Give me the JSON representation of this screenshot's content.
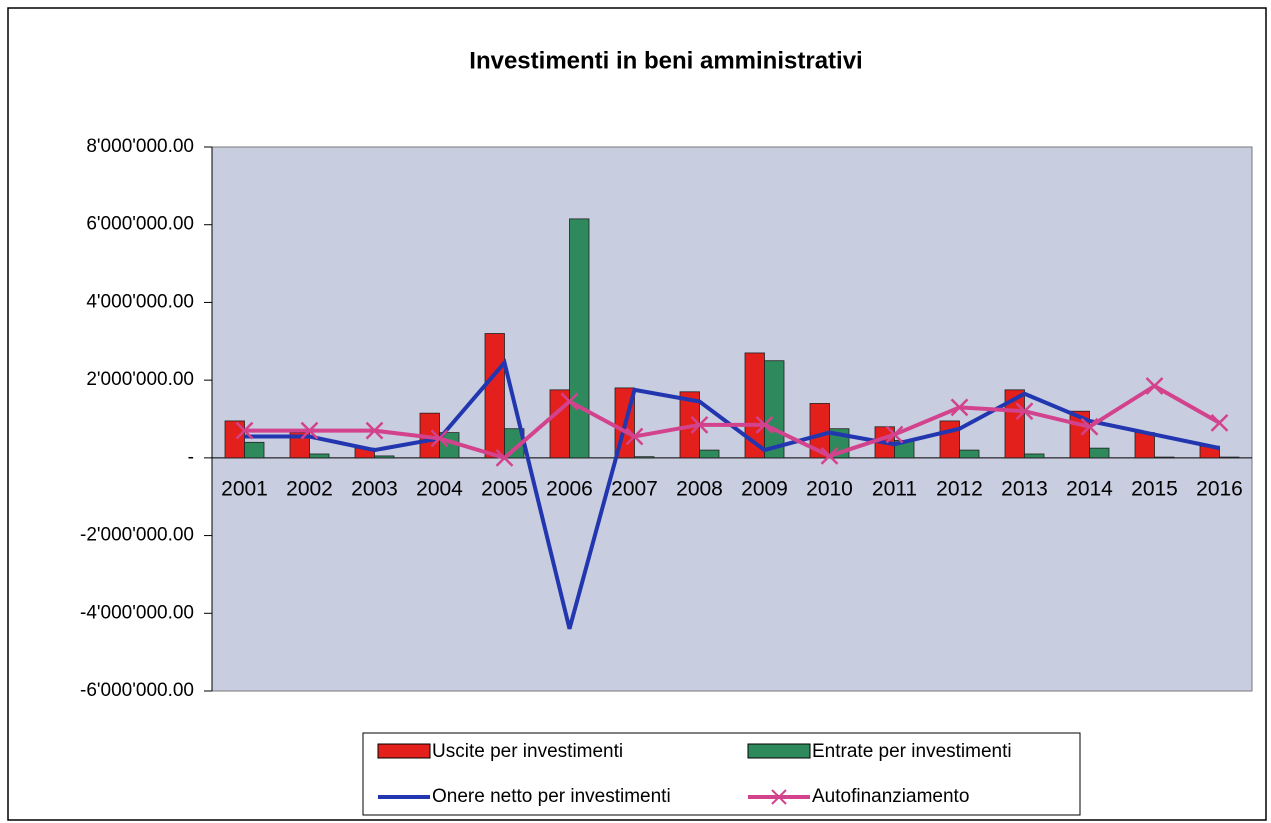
{
  "chart_data": {
    "type": "bar_line",
    "title": "Investimenti in beni amministrativi",
    "categories": [
      "2001",
      "2002",
      "2003",
      "2004",
      "2005",
      "2006",
      "2007",
      "2008",
      "2009",
      "2010",
      "2011",
      "2012",
      "2013",
      "2014",
      "2015",
      "2016"
    ],
    "series": [
      {
        "name": "Uscite per investimenti",
        "type": "bar",
        "color": "#e3201c",
        "values": [
          950000,
          650000,
          250000,
          1150000,
          3200000,
          1750000,
          1800000,
          1700000,
          2700000,
          1400000,
          800000,
          950000,
          1750000,
          1200000,
          650000,
          300000
        ]
      },
      {
        "name": "Entrate per investimenti",
        "type": "bar",
        "color": "#2e8a5c",
        "values": [
          400000,
          100000,
          50000,
          650000,
          750000,
          6150000,
          30000,
          200000,
          2500000,
          750000,
          450000,
          200000,
          100000,
          250000,
          20000,
          20000
        ]
      },
      {
        "name": "Onere netto per investimenti",
        "type": "line",
        "color": "#2236b0",
        "values": [
          550000,
          550000,
          200000,
          500000,
          2450000,
          -4400000,
          1750000,
          1450000,
          200000,
          650000,
          350000,
          750000,
          1650000,
          950000,
          600000,
          250000
        ]
      },
      {
        "name": "Autofinanziamento",
        "type": "line",
        "marker": "x",
        "color": "#d3428c",
        "values": [
          700000,
          700000,
          700000,
          500000,
          0,
          1450000,
          550000,
          850000,
          850000,
          50000,
          600000,
          1300000,
          1200000,
          800000,
          1850000,
          900000
        ]
      }
    ],
    "ylim": [
      -6000000,
      8000000
    ],
    "yticks": [
      {
        "value": -6000000,
        "label": "-6'000'000.00"
      },
      {
        "value": -4000000,
        "label": "-4'000'000.00"
      },
      {
        "value": -2000000,
        "label": "-2'000'000.00"
      },
      {
        "value": 0,
        "label": "-"
      },
      {
        "value": 2000000,
        "label": "2'000'000.00"
      },
      {
        "value": 4000000,
        "label": "4'000'000.00"
      },
      {
        "value": 6000000,
        "label": "6'000'000.00"
      },
      {
        "value": 8000000,
        "label": "8'000'000.00"
      }
    ]
  }
}
